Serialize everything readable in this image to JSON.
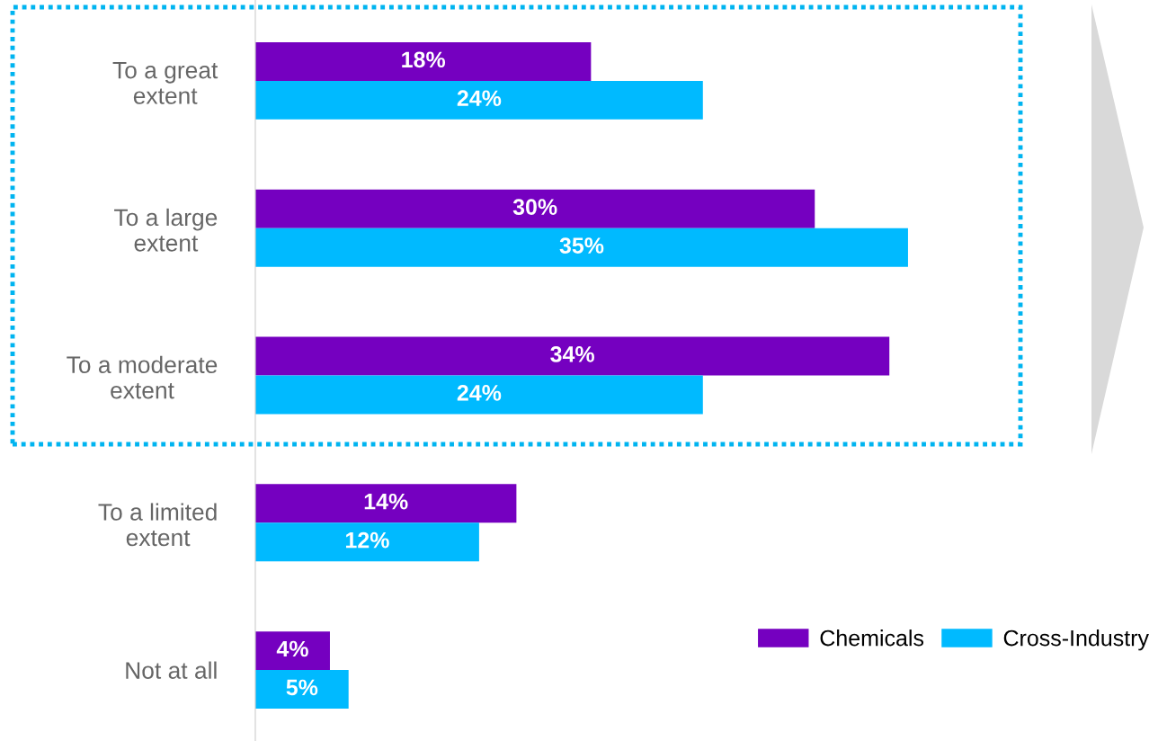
{
  "chart_data": {
    "type": "bar",
    "orientation": "horizontal",
    "categories": [
      "To a great\nextent",
      "To a large\nextent",
      "To a moderate\nextent",
      "To a limited\nextent",
      "Not at all"
    ],
    "series": [
      {
        "name": "Chemicals",
        "color": "#7500c0",
        "values": [
          18,
          30,
          34,
          14,
          4
        ],
        "value_labels": [
          "18%",
          "30%",
          "34%",
          "14%",
          "4%"
        ]
      },
      {
        "name": "Cross-Industry",
        "color": "#00baff",
        "values": [
          24,
          35,
          24,
          12,
          5
        ],
        "value_labels": [
          "24%",
          "35%",
          "24%",
          "12%",
          "5%"
        ]
      }
    ],
    "relative": false,
    "legend": "bottom right",
    "grid": false
  }
}
